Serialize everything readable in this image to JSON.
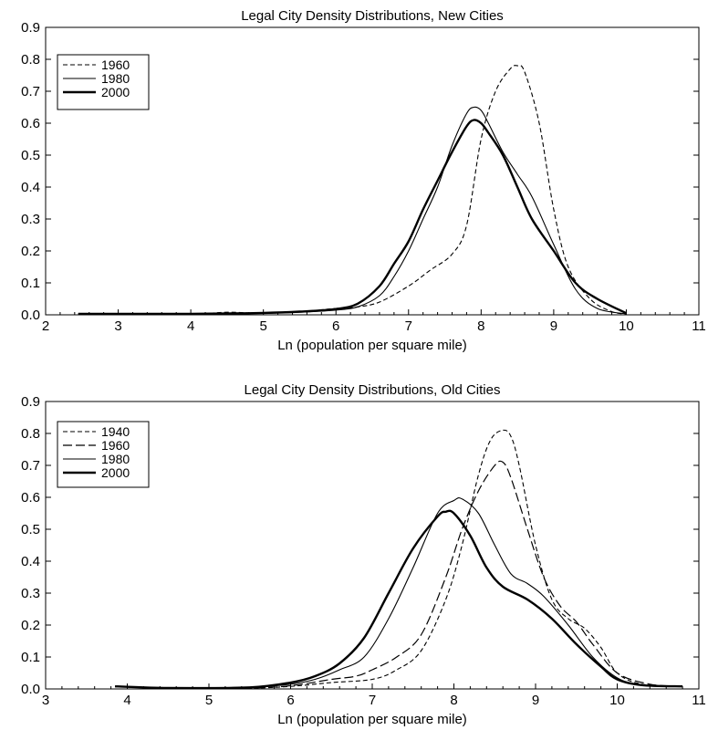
{
  "chart_data": [
    {
      "type": "line",
      "title": "Legal City Density Distributions, New Cities",
      "xlabel": "Ln (population per square mile)",
      "ylabel": "",
      "xlim": [
        2,
        11
      ],
      "ylim": [
        0,
        0.9
      ],
      "xticks": [
        "2",
        "3",
        "4",
        "5",
        "6",
        "7",
        "8",
        "9",
        "10",
        "11"
      ],
      "yticks": [
        "0.0",
        "0.1",
        "0.2",
        "0.3",
        "0.4",
        "0.5",
        "0.6",
        "0.7",
        "0.8",
        "0.9"
      ],
      "legend_position": "top-left",
      "grid": false,
      "series": [
        {
          "name": "1960",
          "style": "dashed",
          "x": [
            2.45,
            4.0,
            4.5,
            5.0,
            5.5,
            6.0,
            6.3,
            6.6,
            7.0,
            7.3,
            7.6,
            7.8,
            8.0,
            8.2,
            8.4,
            8.5,
            8.6,
            8.8,
            9.0,
            9.2,
            9.5,
            9.8,
            10.0
          ],
          "y": [
            0.003,
            0.003,
            0.008,
            0.005,
            0.01,
            0.02,
            0.025,
            0.04,
            0.09,
            0.14,
            0.19,
            0.28,
            0.55,
            0.7,
            0.77,
            0.78,
            0.76,
            0.6,
            0.33,
            0.15,
            0.05,
            0.01,
            0.003
          ]
        },
        {
          "name": "1980",
          "style": "solid-thin",
          "x": [
            2.45,
            4.0,
            5.0,
            5.5,
            6.0,
            6.3,
            6.6,
            6.8,
            7.0,
            7.2,
            7.4,
            7.6,
            7.8,
            7.9,
            8.0,
            8.1,
            8.3,
            8.5,
            8.7,
            9.0,
            9.3,
            9.6,
            10.0
          ],
          "y": [
            0.003,
            0.003,
            0.005,
            0.008,
            0.015,
            0.025,
            0.06,
            0.12,
            0.2,
            0.3,
            0.4,
            0.53,
            0.63,
            0.65,
            0.64,
            0.6,
            0.51,
            0.44,
            0.37,
            0.22,
            0.08,
            0.02,
            0.003
          ]
        },
        {
          "name": "2000",
          "style": "solid-thick",
          "x": [
            2.45,
            4.0,
            5.0,
            5.5,
            6.0,
            6.3,
            6.6,
            6.8,
            7.0,
            7.2,
            7.4,
            7.6,
            7.8,
            7.9,
            8.0,
            8.1,
            8.3,
            8.5,
            8.7,
            9.0,
            9.3,
            9.6,
            10.0
          ],
          "y": [
            0.003,
            0.003,
            0.006,
            0.01,
            0.018,
            0.035,
            0.09,
            0.16,
            0.23,
            0.33,
            0.42,
            0.51,
            0.59,
            0.61,
            0.6,
            0.57,
            0.5,
            0.4,
            0.3,
            0.2,
            0.1,
            0.05,
            0.005
          ]
        }
      ]
    },
    {
      "type": "line",
      "title": "Legal City Density Distributions, Old Cities",
      "xlabel": "Ln (population per square mile)",
      "ylabel": "",
      "xlim": [
        3,
        11
      ],
      "ylim": [
        0,
        0.9
      ],
      "xticks": [
        "3",
        "4",
        "5",
        "6",
        "7",
        "8",
        "9",
        "10",
        "11"
      ],
      "yticks": [
        "0.0",
        "0.1",
        "0.2",
        "0.3",
        "0.4",
        "0.5",
        "0.6",
        "0.7",
        "0.8",
        "0.9"
      ],
      "legend_position": "top-left",
      "grid": false,
      "series": [
        {
          "name": "1940",
          "style": "dashed",
          "x": [
            3.85,
            4.5,
            5.5,
            6.0,
            6.5,
            7.0,
            7.3,
            7.6,
            7.9,
            8.1,
            8.3,
            8.45,
            8.6,
            8.7,
            8.8,
            9.0,
            9.2,
            9.4,
            9.6,
            9.8,
            10.0,
            10.3,
            10.8
          ],
          "y": [
            0.008,
            0.003,
            0.003,
            0.008,
            0.02,
            0.03,
            0.06,
            0.12,
            0.28,
            0.45,
            0.67,
            0.78,
            0.81,
            0.79,
            0.7,
            0.45,
            0.28,
            0.22,
            0.19,
            0.13,
            0.05,
            0.015,
            0.008
          ]
        },
        {
          "name": "1960",
          "style": "longdash",
          "x": [
            3.85,
            4.5,
            5.5,
            6.0,
            6.5,
            6.8,
            7.0,
            7.3,
            7.6,
            7.9,
            8.1,
            8.3,
            8.5,
            8.6,
            8.7,
            8.9,
            9.1,
            9.3,
            9.5,
            9.7,
            10.0,
            10.4,
            10.8
          ],
          "y": [
            0.008,
            0.003,
            0.003,
            0.01,
            0.03,
            0.04,
            0.06,
            0.1,
            0.17,
            0.35,
            0.5,
            0.62,
            0.7,
            0.71,
            0.66,
            0.5,
            0.35,
            0.26,
            0.21,
            0.14,
            0.05,
            0.015,
            0.008
          ]
        },
        {
          "name": "1980",
          "style": "solid-thin",
          "x": [
            3.85,
            4.5,
            5.5,
            6.0,
            6.3,
            6.6,
            6.9,
            7.2,
            7.5,
            7.8,
            8.0,
            8.1,
            8.3,
            8.5,
            8.7,
            8.9,
            9.1,
            9.4,
            9.7,
            10.0,
            10.3,
            10.8
          ],
          "y": [
            0.008,
            0.003,
            0.005,
            0.015,
            0.03,
            0.06,
            0.1,
            0.22,
            0.38,
            0.55,
            0.59,
            0.595,
            0.55,
            0.45,
            0.36,
            0.33,
            0.29,
            0.2,
            0.1,
            0.035,
            0.012,
            0.008
          ]
        },
        {
          "name": "2000",
          "style": "solid-thick",
          "x": [
            3.85,
            4.5,
            5.5,
            6.0,
            6.3,
            6.6,
            6.9,
            7.2,
            7.5,
            7.8,
            7.9,
            8.0,
            8.2,
            8.4,
            8.6,
            8.9,
            9.2,
            9.5,
            9.8,
            10.0,
            10.3,
            10.8
          ],
          "y": [
            0.008,
            0.003,
            0.005,
            0.02,
            0.04,
            0.08,
            0.16,
            0.3,
            0.44,
            0.54,
            0.555,
            0.55,
            0.48,
            0.38,
            0.32,
            0.28,
            0.22,
            0.14,
            0.07,
            0.03,
            0.012,
            0.008
          ]
        }
      ]
    }
  ]
}
